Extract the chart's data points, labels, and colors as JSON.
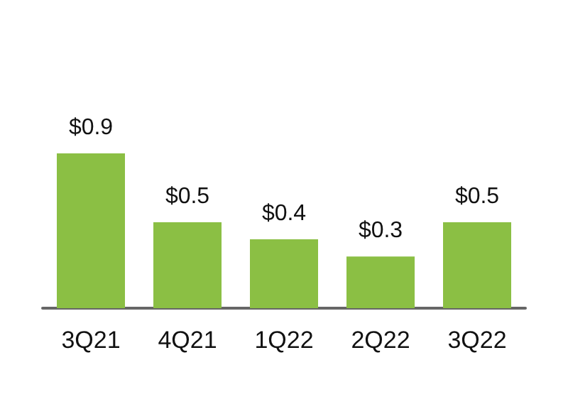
{
  "chart_data": {
    "type": "bar",
    "categories": [
      "3Q21",
      "4Q21",
      "1Q22",
      "2Q22",
      "3Q22"
    ],
    "values": [
      0.9,
      0.5,
      0.4,
      0.3,
      0.5
    ],
    "value_labels": [
      "$0.9",
      "$0.5",
      "$0.4",
      "$0.3",
      "$0.5"
    ],
    "color": "#8bbf44"
  }
}
